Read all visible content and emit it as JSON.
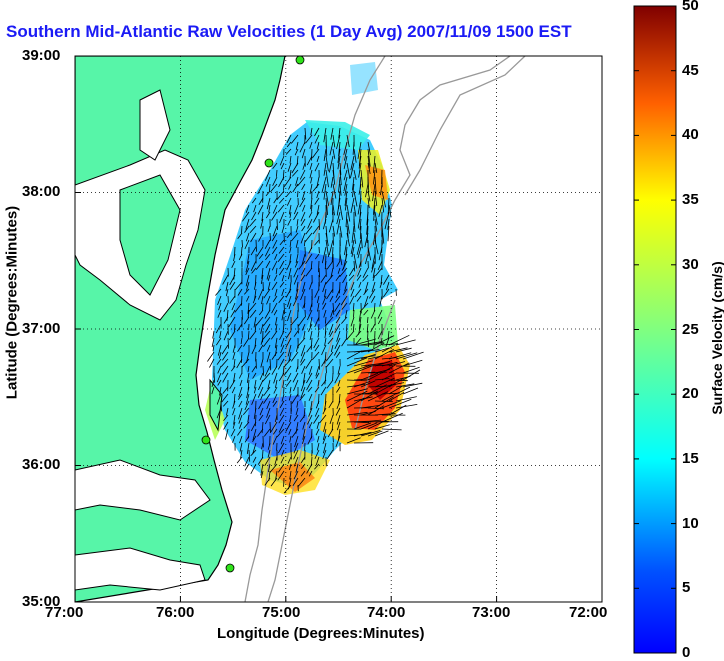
{
  "map": {
    "title": "Southern Mid-Atlantic Raw Velocities (1 Day Avg) 2007/11/09 1500 EST",
    "x_axis_label": "Longitude (Degrees:Minutes)",
    "y_axis_label": "Latitude (Degrees:Minutes)",
    "x_ticks": [
      "77:00",
      "76:00",
      "75:00",
      "74:00",
      "73:00",
      "72:00"
    ],
    "y_ticks": [
      "39:00",
      "38:00",
      "37:00",
      "36:00",
      "35:00"
    ],
    "grid": true,
    "colors": {
      "land": "#57f5a8",
      "title": "#1b1bf5",
      "coast": "#000000",
      "bathymetry": "#999999",
      "station": "#2fe21a"
    }
  },
  "colorbar": {
    "label": "Surface Velocity (cm/s)",
    "min": 0,
    "max": 50,
    "ticks": [
      "50",
      "45",
      "40",
      "35",
      "30",
      "25",
      "20",
      "15",
      "10",
      "5",
      "0"
    ],
    "colormap": "jet"
  }
}
